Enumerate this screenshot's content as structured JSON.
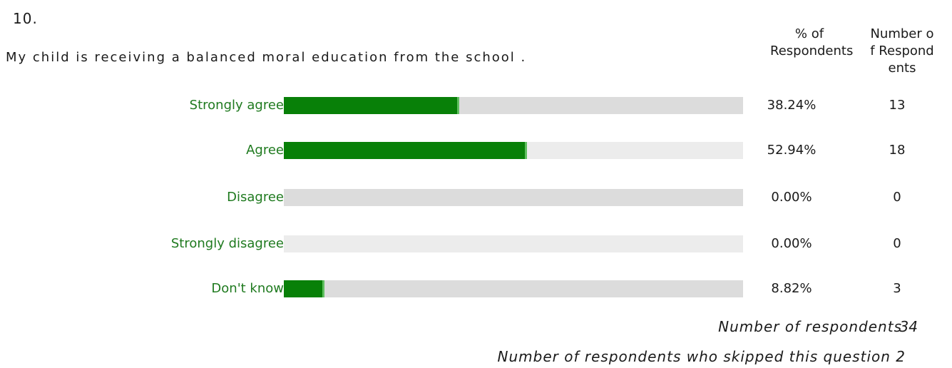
{
  "question": {
    "number": "10.",
    "text": "My child is receiving a balanced moral education from the school ."
  },
  "columns": {
    "percent_header": "% of\nRespondents",
    "count_header": "Number o\nf Respond\nents"
  },
  "chart_data": {
    "type": "bar",
    "categories": [
      "Strongly agree",
      "Agree",
      "Disagree",
      "Strongly disagree",
      "Don't know"
    ],
    "series": [
      {
        "values": [
          38.24,
          52.94,
          0.0,
          0.0,
          8.82
        ]
      }
    ],
    "percent_labels": [
      "38.24%",
      "52.94%",
      "0.00%",
      "0.00%",
      "8.82%"
    ],
    "counts": [
      13,
      18,
      0,
      0,
      3
    ],
    "xlim": [
      0,
      100
    ],
    "colors": {
      "bar": "#088008",
      "track_dark": "#dcdcdc",
      "track_light": "#ececec",
      "label": "#1f7a1f"
    }
  },
  "summary": {
    "respondents_label": "Number of respondents",
    "respondents_value": "34",
    "skipped_label": "Number of respondents who skipped this question 2"
  }
}
